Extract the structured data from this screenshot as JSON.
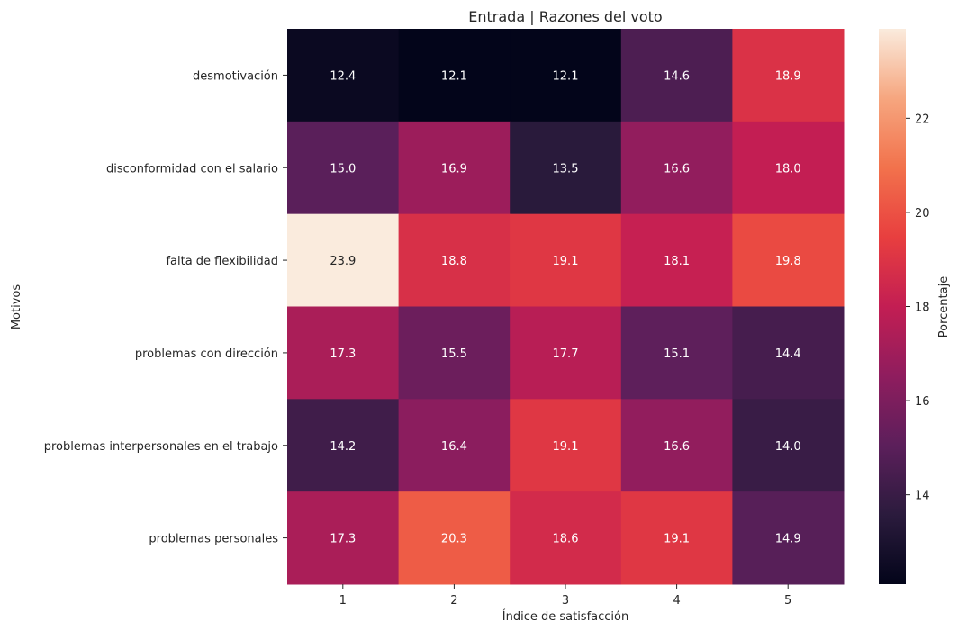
{
  "chart_data": {
    "type": "heatmap",
    "title": "Entrada | Razones del voto",
    "xlabel": "Índice de satisfacción",
    "ylabel": "Motivos",
    "x_categories": [
      "1",
      "2",
      "3",
      "4",
      "5"
    ],
    "y_categories": [
      "desmotivación",
      "disconformidad con el salario",
      "falta de flexibilidad",
      "problemas con dirección",
      "problemas interpersonales en el trabajo",
      "problemas personales"
    ],
    "values": [
      [
        12.4,
        12.1,
        12.1,
        14.6,
        18.9
      ],
      [
        15.0,
        16.9,
        13.5,
        16.6,
        18.0
      ],
      [
        23.9,
        18.8,
        19.1,
        18.1,
        19.8
      ],
      [
        17.3,
        15.5,
        17.7,
        15.1,
        14.4
      ],
      [
        14.2,
        16.4,
        19.1,
        16.6,
        14.0
      ],
      [
        17.3,
        20.3,
        18.6,
        19.1,
        14.9
      ]
    ],
    "value_labels": [
      [
        "12.4",
        "12.1",
        "12.1",
        "14.6",
        "18.9"
      ],
      [
        "15.0",
        "16.9",
        "13.5",
        "16.6",
        "18.0"
      ],
      [
        "23.9",
        "18.8",
        "19.1",
        "18.1",
        "19.8"
      ],
      [
        "17.3",
        "15.5",
        "17.7",
        "15.1",
        "14.4"
      ],
      [
        "14.2",
        "16.4",
        "19.1",
        "16.6",
        "14.0"
      ],
      [
        "17.3",
        "20.3",
        "18.6",
        "19.1",
        "14.9"
      ]
    ],
    "colormap": "rocket",
    "colorbar": {
      "label": "Porcentaje",
      "range": [
        12.1,
        23.9
      ],
      "ticks": [
        14,
        16,
        18,
        20,
        22
      ],
      "tick_labels": [
        "14",
        "16",
        "18",
        "20",
        "22"
      ]
    },
    "grid": false
  }
}
